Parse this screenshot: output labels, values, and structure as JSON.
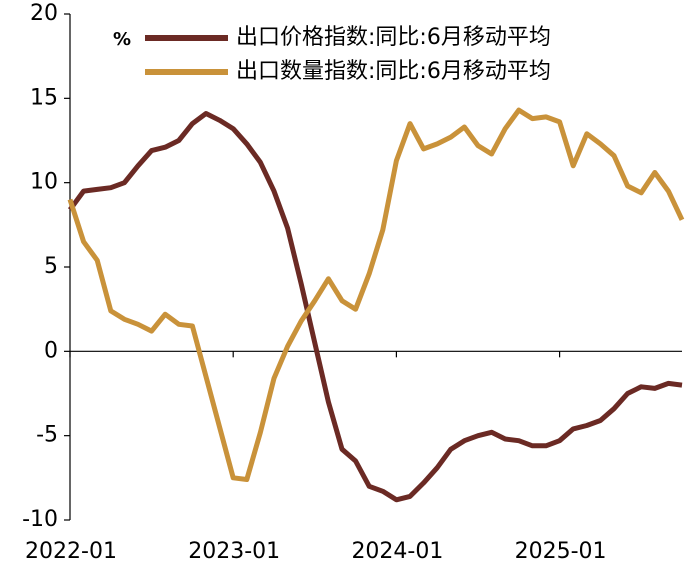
{
  "chart_data": {
    "type": "line",
    "y_label": "%",
    "categories": [
      "2022-01",
      null,
      null,
      null,
      null,
      null,
      null,
      null,
      null,
      null,
      null,
      null,
      "2023-01",
      null,
      null,
      null,
      null,
      null,
      null,
      null,
      null,
      null,
      null,
      null,
      "2024-01",
      null,
      null,
      null,
      null,
      null,
      null,
      null,
      null,
      null,
      null,
      null,
      "2025-01",
      null,
      null,
      null,
      null,
      null,
      null,
      null,
      null,
      null
    ],
    "series": [
      {
        "name": "出口价格指数:同比:6月移动平均",
        "color": "#6b2a24",
        "values": [
          8.4,
          9.5,
          9.6,
          9.7,
          10.0,
          11.0,
          11.9,
          12.1,
          12.5,
          13.5,
          14.1,
          13.7,
          13.2,
          12.3,
          11.2,
          9.5,
          7.3,
          4.0,
          0.5,
          -3.0,
          -5.8,
          -6.5,
          -8.0,
          -8.3,
          -8.8,
          -8.6,
          -7.8,
          -6.9,
          -5.8,
          -5.3,
          -5.0,
          -4.8,
          -5.2,
          -5.3,
          -5.6,
          -5.6,
          -5.3,
          -4.6,
          -4.4,
          -4.1,
          -3.4,
          -2.5,
          -2.1,
          -2.2,
          -1.9,
          -2.0
        ]
      },
      {
        "name": "出口数量指数:同比:6月移动平均",
        "color": "#c9923a",
        "values": [
          9.0,
          6.5,
          5.4,
          2.4,
          1.9,
          1.6,
          1.2,
          2.2,
          1.6,
          1.5,
          -1.5,
          -4.5,
          -7.5,
          -7.6,
          -4.8,
          -1.6,
          0.3,
          1.8,
          3.0,
          4.3,
          3.0,
          2.5,
          4.6,
          7.2,
          11.3,
          13.5,
          12.0,
          12.3,
          12.7,
          13.3,
          12.2,
          11.7,
          13.2,
          14.3,
          13.8,
          13.9,
          13.6,
          11.0,
          12.9,
          12.3,
          11.6,
          9.8,
          9.4,
          10.6,
          9.5,
          7.8
        ]
      }
    ],
    "ylim": [
      -10,
      20
    ],
    "yticks": [
      -10,
      -5,
      0,
      5,
      10,
      15,
      20
    ]
  }
}
